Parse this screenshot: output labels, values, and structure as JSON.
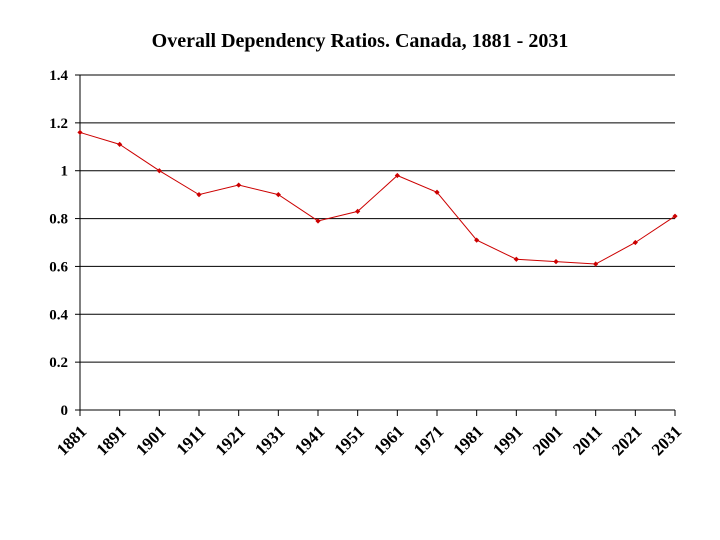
{
  "chart_data": {
    "type": "line",
    "title": "Overall Dependency Ratios.  Canada, 1881 - 2031",
    "xlabel": "",
    "ylabel": "",
    "x": [
      "1881",
      "1891",
      "1901",
      "1911",
      "1921",
      "1931",
      "1941",
      "1951",
      "1961",
      "1971",
      "1981",
      "1991",
      "2001",
      "2011",
      "2021",
      "2031"
    ],
    "points": [
      1.16,
      1.11,
      1.0,
      0.9,
      0.94,
      0.9,
      0.79,
      0.83,
      0.98,
      0.91,
      0.71,
      0.63,
      0.62,
      0.61,
      0.7,
      0.81
    ],
    "ylim": [
      0,
      1.4
    ],
    "yticks": [
      0,
      0.2,
      0.4,
      0.6,
      0.8,
      1,
      1.2,
      1.4
    ],
    "ytick_labels": [
      "0",
      "0.2",
      "0.4",
      "0.6",
      "0.8",
      "1",
      "1.2",
      "1.4"
    ],
    "grid": true,
    "legend": "none",
    "line_color": "#cc0000",
    "grid_color": "#000000"
  }
}
